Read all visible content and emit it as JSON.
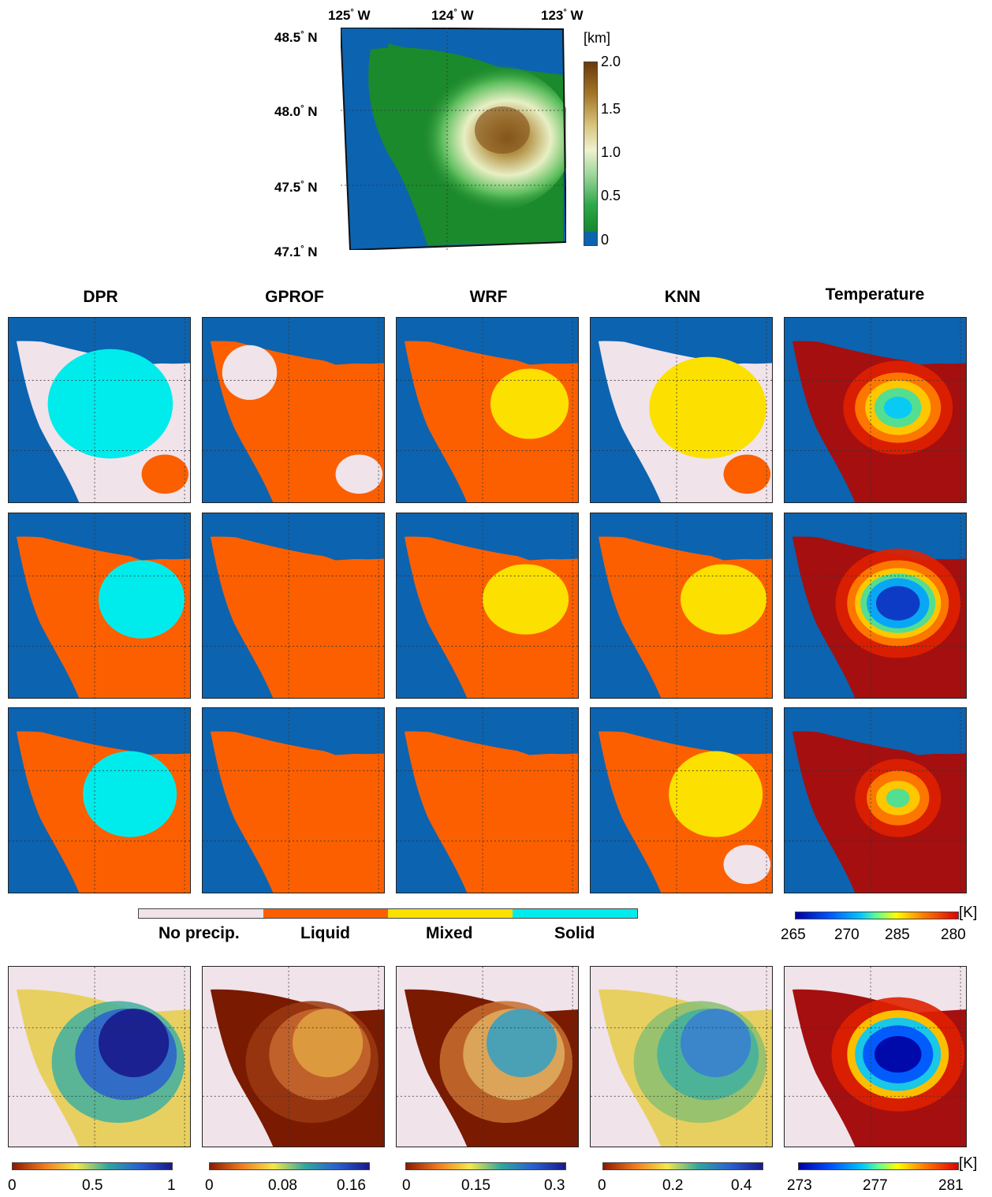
{
  "topmap": {
    "lon_labels": [
      "125",
      "124",
      "123"
    ],
    "lon_suffix": "W",
    "lat_labels": [
      "48.5",
      "48.0",
      "47.5",
      "47.1"
    ],
    "lat_suffix": "N",
    "degree_mark": "°",
    "elevation_unit": "[km]",
    "elevation_ticks": [
      "2.0",
      "1.5",
      "1.0",
      "0.5",
      "0"
    ]
  },
  "columns": [
    "DPR",
    "GPROF",
    "WRF",
    "KNN",
    "Temperature"
  ],
  "phase_legend": {
    "categories": [
      "No precip.",
      "Liquid",
      "Mixed",
      "Solid"
    ],
    "colors": [
      "#f1e3ea",
      "#fc5f00",
      "#fce000",
      "#00ecec"
    ]
  },
  "temp_legend": {
    "unit": "[K]",
    "ticks": [
      "265",
      "270",
      "285",
      "280"
    ]
  },
  "bottom_colorbars": [
    {
      "ticks": [
        "0",
        "0.5",
        "1"
      ]
    },
    {
      "ticks": [
        "0",
        "0.08",
        "0.16"
      ]
    },
    {
      "ticks": [
        "0",
        "0.15",
        "0.3"
      ]
    },
    {
      "ticks": [
        "0",
        "0.2",
        "0.4"
      ]
    },
    {
      "ticks": [
        "273",
        "277",
        "281"
      ],
      "unit": "[K]"
    }
  ],
  "colors": {
    "ocean": "#0c63b0",
    "land_green": "#1b8a2c",
    "dark_red": "#a50f0f"
  }
}
